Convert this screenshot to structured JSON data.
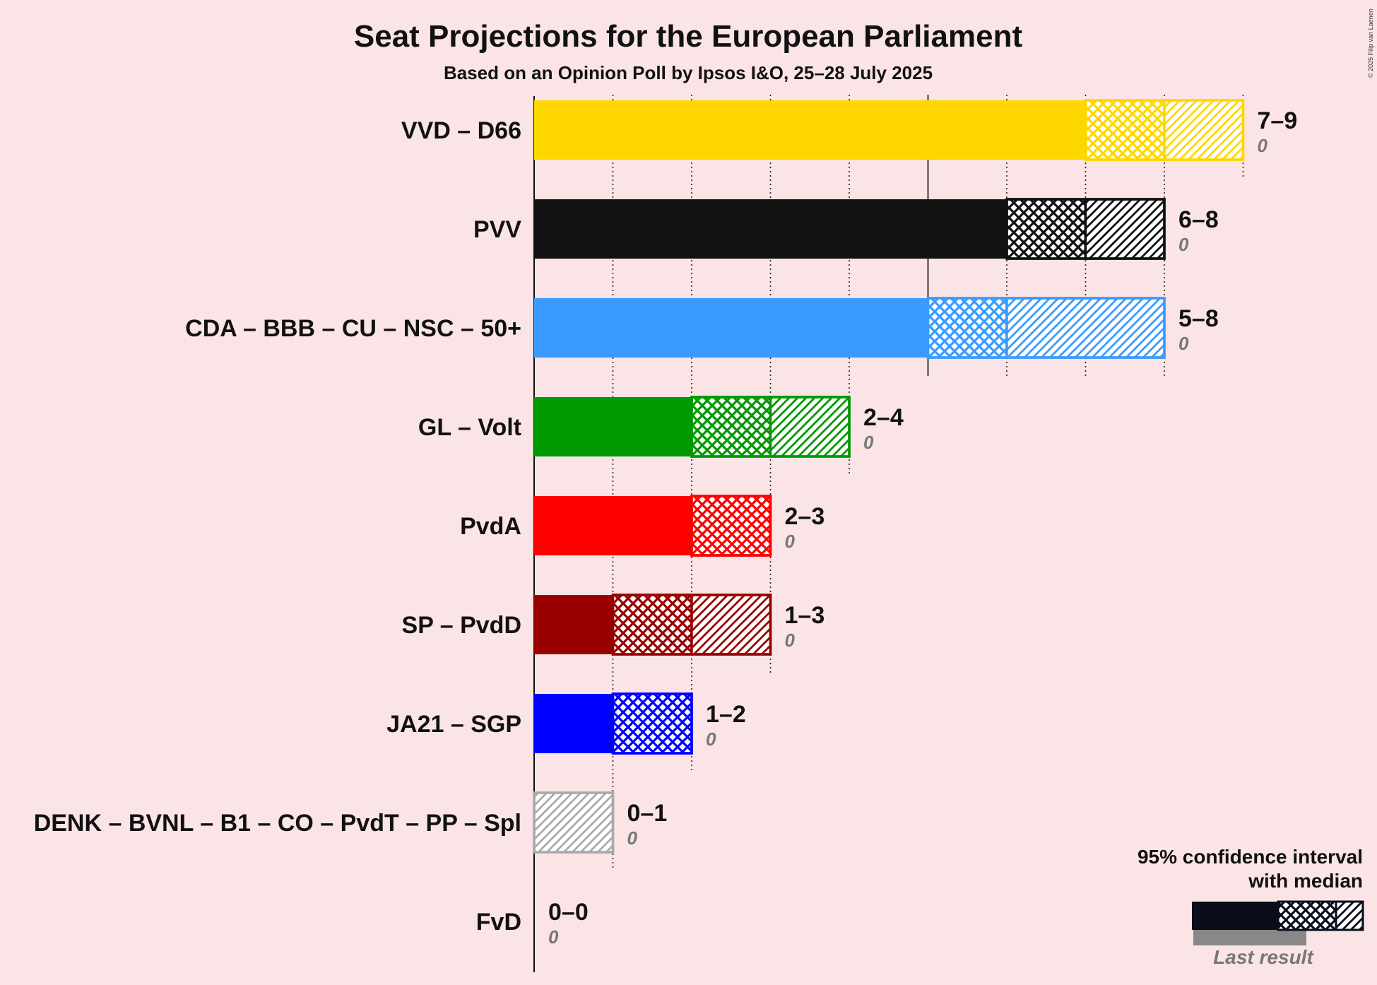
{
  "title": "Seat Projections for the European Parliament",
  "subtitle": "Based on an Opinion Poll by Ipsos I&O, 25–28 July 2025",
  "copyright": "© 2025 Filip van Laenen",
  "legend": {
    "line1": "95% confidence interval",
    "line2": "with median",
    "last_result": "Last result"
  },
  "chart_data": {
    "type": "bar",
    "orientation": "horizontal",
    "title": "Seat Projections for the European Parliament",
    "subtitle": "Based on an Opinion Poll by Ipsos I&O, 25–28 July 2025",
    "xlim": [
      0,
      9
    ],
    "grid": true,
    "legend_position": "bottom-right",
    "series": [
      {
        "name": "VVD – D66",
        "color": "#ffd700",
        "low": 7,
        "median": 8,
        "high": 9,
        "label": "7–9",
        "last_result": "0"
      },
      {
        "name": "PVV",
        "color": "#111111",
        "low": 6,
        "median": 7,
        "high": 8,
        "label": "6–8",
        "last_result": "0"
      },
      {
        "name": "CDA – BBB – CU – NSC – 50+",
        "color": "#3a9bff",
        "low": 5,
        "median": 6,
        "high": 8,
        "label": "5–8",
        "last_result": "0"
      },
      {
        "name": "GL – Volt",
        "color": "#009900",
        "low": 2,
        "median": 3,
        "high": 4,
        "label": "2–4",
        "last_result": "0"
      },
      {
        "name": "PvdA",
        "color": "#ff0000",
        "low": 2,
        "median": 3,
        "high": 3,
        "label": "2–3",
        "last_result": "0"
      },
      {
        "name": "SP – PvdD",
        "color": "#990000",
        "low": 1,
        "median": 2,
        "high": 3,
        "label": "1–3",
        "last_result": "0"
      },
      {
        "name": "JA21 – SGP",
        "color": "#0000ff",
        "low": 1,
        "median": 2,
        "high": 2,
        "label": "1–2",
        "last_result": "0"
      },
      {
        "name": "DENK – BVNL – B1 – CO – PvdT – PP – Spl",
        "color": "#aaaaaa",
        "low": 0,
        "median": 0,
        "high": 1,
        "label": "0–1",
        "last_result": "0"
      },
      {
        "name": "FvD",
        "color": "#888888",
        "low": 0,
        "median": 0,
        "high": 0,
        "label": "0–0",
        "last_result": "0"
      }
    ]
  }
}
